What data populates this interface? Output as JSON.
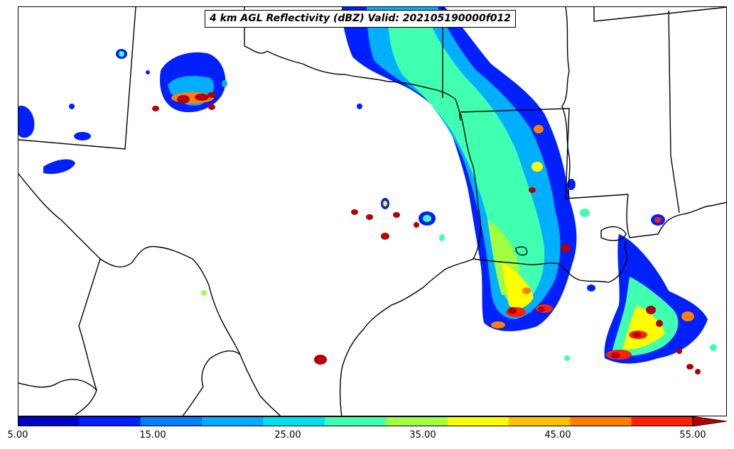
{
  "title": "4 km AGL Reflectivity (dBZ) Valid: 202105190000f012",
  "colorbar": {
    "ticks": [
      "5.00",
      "15.00",
      "25.00",
      "35.00",
      "45.00",
      "55.00"
    ],
    "colors": [
      "#0000c8",
      "#0020ff",
      "#0080ff",
      "#00b0ff",
      "#00e0f0",
      "#40ffb0",
      "#a0ff40",
      "#ffff00",
      "#ffc000",
      "#ff8000",
      "#ff2000",
      "#b40000"
    ],
    "extend": "max"
  },
  "colors": {
    "boundary": "#000000",
    "light_echo": "#0020ff",
    "medium_echo": "#40ffb0",
    "strong_echo": "#ffff00",
    "core_echo": "#b40000"
  }
}
